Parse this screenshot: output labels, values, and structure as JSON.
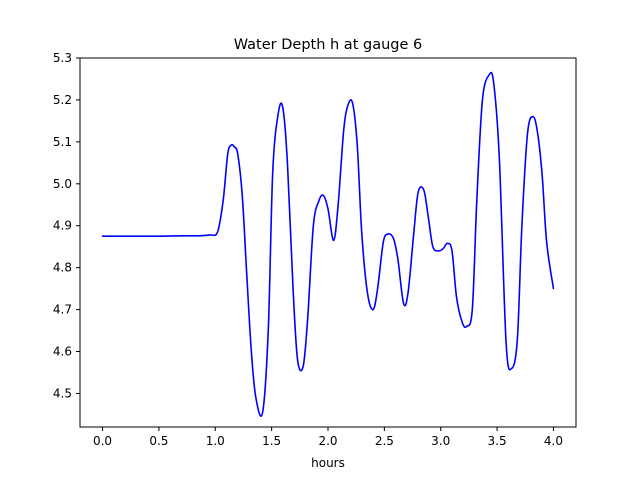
{
  "chart_data": {
    "type": "line",
    "title": "Water Depth h at gauge 6",
    "xlabel": "hours",
    "ylabel": "",
    "xlim": [
      -0.2,
      4.2
    ],
    "ylim": [
      4.42,
      5.3
    ],
    "xticks": [
      0.0,
      0.5,
      1.0,
      1.5,
      2.0,
      2.5,
      3.0,
      3.5,
      4.0
    ],
    "xtick_labels": [
      "0.0",
      "0.5",
      "1.0",
      "1.5",
      "2.0",
      "2.5",
      "3.0",
      "3.5",
      "4.0"
    ],
    "yticks": [
      4.5,
      4.6,
      4.7,
      4.8,
      4.9,
      5.0,
      5.1,
      5.2,
      5.3
    ],
    "ytick_labels": [
      "4.5",
      "4.6",
      "4.7",
      "4.8",
      "4.9",
      "5.0",
      "5.1",
      "5.2",
      "5.3"
    ],
    "grid": false,
    "series": [
      {
        "color": "#0000ff",
        "x": [
          0.0,
          0.25,
          0.5,
          0.7,
          0.85,
          0.95,
          1.02,
          1.07,
          1.11,
          1.14,
          1.17,
          1.2,
          1.24,
          1.28,
          1.32,
          1.36,
          1.42,
          1.47,
          1.51,
          1.56,
          1.6,
          1.64,
          1.69,
          1.73,
          1.78,
          1.82,
          1.87,
          1.92,
          1.96,
          2.0,
          2.05,
          2.09,
          2.14,
          2.18,
          2.22,
          2.26,
          2.3,
          2.35,
          2.4,
          2.44,
          2.49,
          2.53,
          2.58,
          2.62,
          2.67,
          2.71,
          2.76,
          2.8,
          2.85,
          2.89,
          2.93,
          2.98,
          3.02,
          3.06,
          3.1,
          3.14,
          3.19,
          3.23,
          3.28,
          3.32,
          3.37,
          3.43,
          3.47,
          3.52,
          3.58,
          3.63,
          3.68,
          3.72,
          3.77,
          3.82,
          3.86,
          3.9,
          3.94,
          4.0
        ],
        "values": [
          4.875,
          4.875,
          4.875,
          4.876,
          4.876,
          4.878,
          4.885,
          4.96,
          5.07,
          5.092,
          5.088,
          5.07,
          4.97,
          4.78,
          4.6,
          4.49,
          4.455,
          4.65,
          5.03,
          5.17,
          5.18,
          5.05,
          4.75,
          4.58,
          4.565,
          4.68,
          4.9,
          4.96,
          4.972,
          4.94,
          4.865,
          4.95,
          5.13,
          5.19,
          5.19,
          5.09,
          4.88,
          4.74,
          4.7,
          4.75,
          4.86,
          4.88,
          4.87,
          4.82,
          4.715,
          4.74,
          4.88,
          4.98,
          4.985,
          4.92,
          4.85,
          4.84,
          4.845,
          4.858,
          4.84,
          4.73,
          4.67,
          4.66,
          4.7,
          4.96,
          5.2,
          5.26,
          5.24,
          5.06,
          4.62,
          4.56,
          4.63,
          4.9,
          5.12,
          5.16,
          5.12,
          5.02,
          4.86,
          4.75
        ]
      }
    ]
  }
}
